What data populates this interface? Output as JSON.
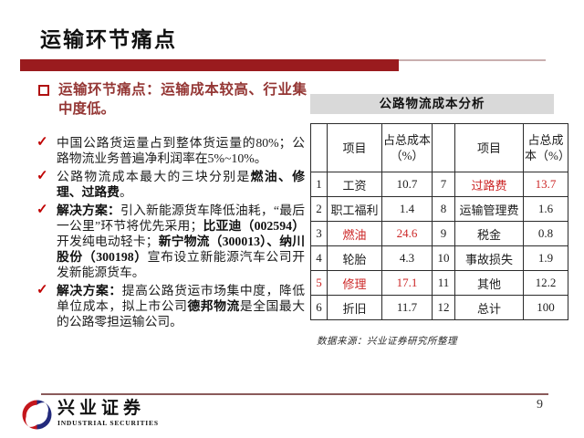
{
  "title": "运输环节痛点",
  "page_number": "9",
  "content": {
    "main_bullet": "运输环节痛点：运输成本较高、行业集中度低。",
    "check_glyph": "✓",
    "bullets": [
      {
        "segments": [
          {
            "text": "中国公路货运量占到整体货运量的80%；公路物流业务普遍净利润率在5%~10%。",
            "bold": false
          }
        ]
      },
      {
        "segments": [
          {
            "text": "公路物流成本最大的三块分别是",
            "bold": false
          },
          {
            "text": "燃油、修理、过路费",
            "bold": true
          },
          {
            "text": "。",
            "bold": false
          }
        ]
      },
      {
        "segments": [
          {
            "text": "解决方案：",
            "bold": true
          },
          {
            "text": "引入新能源货车降低油耗，“最后一公里”环节将优先采用；",
            "bold": false
          },
          {
            "text": "比亚迪（002594）",
            "bold": true
          },
          {
            "text": "开发纯电动轻卡；",
            "bold": false
          },
          {
            "text": "新宁物流（300013）、纳川股份（300198）",
            "bold": true
          },
          {
            "text": "宣布设立新能源汽车公司开发新能源货车。",
            "bold": false
          }
        ]
      },
      {
        "segments": [
          {
            "text": "解决方案：",
            "bold": true
          },
          {
            "text": "提高公路货运市场集中度，降低单位成本，拟上市公司",
            "bold": false
          },
          {
            "text": "德邦物流",
            "bold": true
          },
          {
            "text": "是全国最大的公路零担运输公司。",
            "bold": false
          }
        ]
      }
    ]
  },
  "table": {
    "title": "公路物流成本分析",
    "headers": [
      "",
      "项目",
      "占总成本（%）",
      "",
      "项目",
      "占总成本（%）"
    ],
    "rows": [
      {
        "cells": [
          {
            "t": "1"
          },
          {
            "t": "工资"
          },
          {
            "t": "10.7"
          },
          {
            "t": "7"
          },
          {
            "t": "过路费",
            "red": true
          },
          {
            "t": "13.7",
            "red": true
          }
        ]
      },
      {
        "cells": [
          {
            "t": "2"
          },
          {
            "t": "职工福利"
          },
          {
            "t": "1.4"
          },
          {
            "t": "8"
          },
          {
            "t": "运输管理费"
          },
          {
            "t": "1.6"
          }
        ]
      },
      {
        "cells": [
          {
            "t": "3"
          },
          {
            "t": "燃油",
            "red": true
          },
          {
            "t": "24.6",
            "red": true
          },
          {
            "t": "9"
          },
          {
            "t": "税金"
          },
          {
            "t": "0.8"
          }
        ]
      },
      {
        "cells": [
          {
            "t": "4"
          },
          {
            "t": "轮胎"
          },
          {
            "t": "4.3"
          },
          {
            "t": "10"
          },
          {
            "t": "事故损失"
          },
          {
            "t": "1.9"
          }
        ]
      },
      {
        "cells": [
          {
            "t": "5",
            "red": true
          },
          {
            "t": "修理",
            "red": true
          },
          {
            "t": "17.1",
            "red": true
          },
          {
            "t": "11"
          },
          {
            "t": "其他"
          },
          {
            "t": "12.2"
          }
        ]
      },
      {
        "cells": [
          {
            "t": "6"
          },
          {
            "t": "折旧"
          },
          {
            "t": "11.7"
          },
          {
            "t": "12"
          },
          {
            "t": "总计"
          },
          {
            "t": "100"
          }
        ]
      }
    ],
    "source": "数据来源：兴业证券研究所整理"
  },
  "logo": {
    "cn": "兴业证券",
    "en": "INDUSTRIAL SECURITIES"
  },
  "colors": {
    "title_bar": "#9A1B1E",
    "thin_line": "#C9AFAF",
    "main_bullet_text": "#943634",
    "check_red": "#C00000",
    "table_highlight_red": "#CC2626",
    "table_title_bg": "#D9D9D9",
    "footer_line": "#8A5A5A",
    "logo_red": "#C4161C",
    "logo_blue": "#232A7C"
  }
}
